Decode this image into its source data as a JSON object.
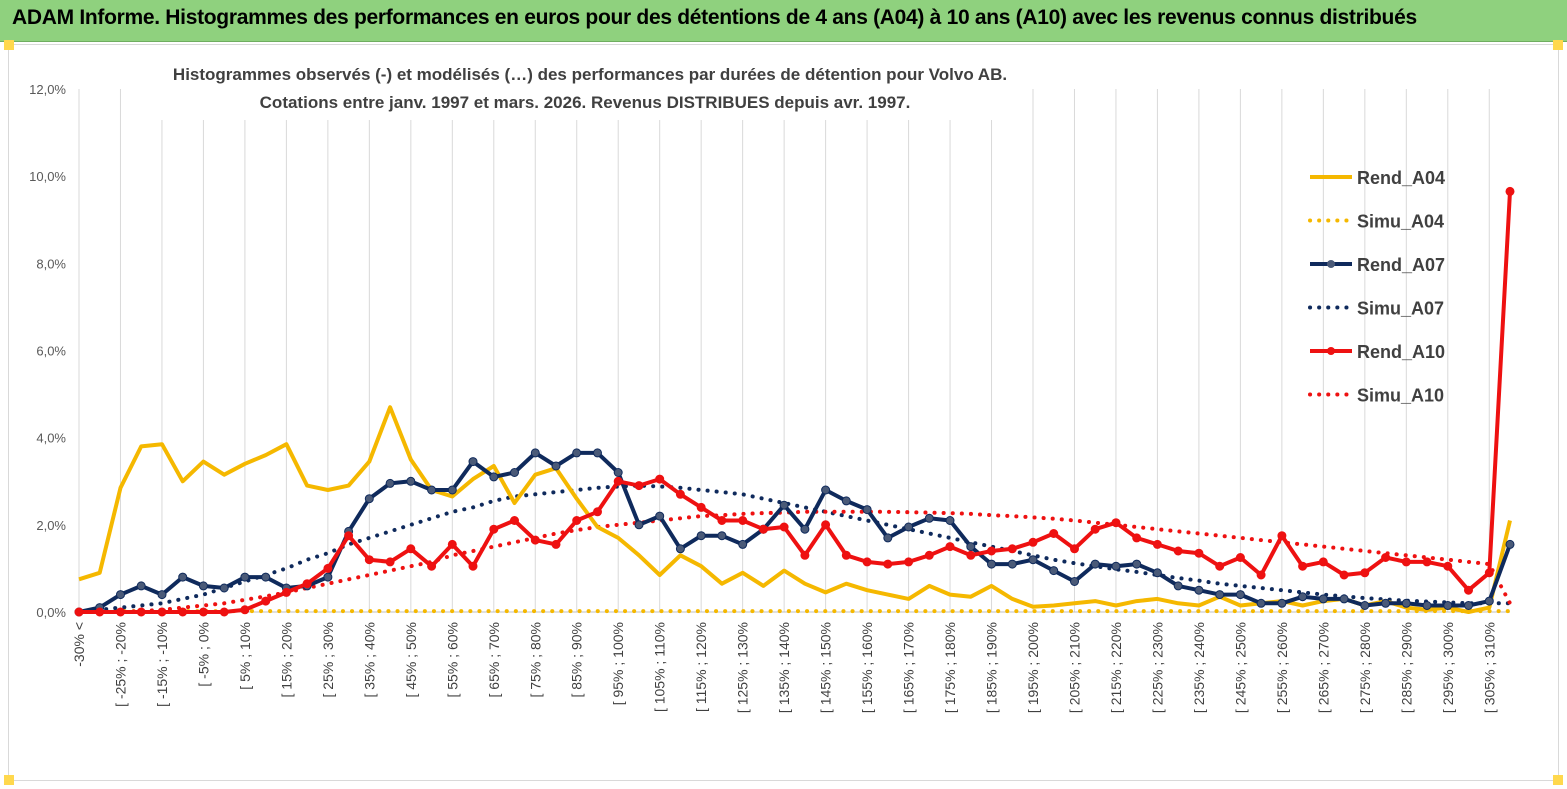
{
  "header": {
    "title": "ADAM Informe. Histogrammes des performances en euros pour des détentions de 4 ans (A04) à 10 ans (A10) avec les revenus connus distribués"
  },
  "chart_data": {
    "type": "line",
    "title_line1": "Histogrammes observés (-) et modélisés (…) des performances par durées de détention pour Volvo AB.",
    "title_line2": "Cotations entre janv. 1997 et mars. 2026.  Revenus DISTRIBUES depuis avr. 1997.",
    "ylim": [
      0,
      12
    ],
    "y_ticks": [
      0,
      2,
      4,
      6,
      8,
      10,
      12
    ],
    "y_tick_labels": [
      "0,0%",
      "2,0%",
      "4,0%",
      "6,0%",
      "8,0%",
      "10,0%",
      "12,0%"
    ],
    "grid": "vertical",
    "legend_position": "right",
    "x_tick_labels": [
      "-30% <",
      "[ -25% ; -20%",
      "[ -15% ; -10%",
      "[ -5% ; 0%",
      "[ 5% ; 10%",
      "[ 15% ; 20%",
      "[ 25% ; 30%",
      "[ 35% ; 40%",
      "[ 45% ; 50%",
      "[ 55% ; 60%",
      "[ 65% ; 70%",
      "[ 75% ; 80%",
      "[ 85% ; 90%",
      "[ 95% ; 100%",
      "[ 105% ; 110%",
      "[ 115% ; 120%",
      "[ 125% ; 130%",
      "[ 135% ; 140%",
      "[ 145% ; 150%",
      "[ 155% ; 160%",
      "[ 165% ; 170%",
      "[ 175% ; 180%",
      "[ 185% ; 190%",
      "[ 195% ; 200%",
      "[ 205% ; 210%",
      "[ 215% ; 220%",
      "[ 225% ; 230%",
      "[ 235% ; 240%",
      "[ 245% ; 250%",
      "[ 255% ; 260%",
      "[ 265% ; 270%",
      "[ 275% ; 280%",
      "[ 285% ; 290%",
      "[ 295% ; 300%",
      "[ 305% ; 310%"
    ],
    "point_count": 70,
    "series": [
      {
        "name": "Rend_A04",
        "style": "solid",
        "color": "#f5b800",
        "markers": false,
        "values": [
          0.75,
          0.9,
          2.85,
          3.8,
          3.85,
          3.0,
          3.45,
          3.15,
          3.4,
          3.6,
          3.85,
          2.9,
          2.8,
          2.9,
          3.45,
          4.7,
          3.5,
          2.8,
          2.65,
          3.05,
          3.35,
          2.5,
          3.15,
          3.3,
          2.6,
          1.95,
          1.7,
          1.3,
          0.85,
          1.3,
          1.05,
          0.65,
          0.9,
          0.6,
          0.95,
          0.65,
          0.45,
          0.65,
          0.5,
          0.4,
          0.3,
          0.6,
          0.4,
          0.35,
          0.6,
          0.3,
          0.12,
          0.15,
          0.2,
          0.25,
          0.15,
          0.25,
          0.3,
          0.2,
          0.15,
          0.35,
          0.15,
          0.2,
          0.25,
          0.15,
          0.25,
          0.3,
          0.15,
          0.25,
          0.1,
          0.05,
          0.1,
          0.0,
          0.1,
          2.1
        ]
      },
      {
        "name": "Simu_A04",
        "style": "dotted",
        "color": "#f5b800",
        "markers": false,
        "values": [
          0.02,
          0.02,
          0.02,
          0.02,
          0.02,
          0.02,
          0.02,
          0.02,
          0.02,
          0.02,
          0.02,
          0.02,
          0.02,
          0.02,
          0.02,
          0.02,
          0.02,
          0.02,
          0.02,
          0.02,
          0.02,
          0.02,
          0.02,
          0.02,
          0.02,
          0.02,
          0.02,
          0.02,
          0.02,
          0.02,
          0.02,
          0.02,
          0.02,
          0.02,
          0.02,
          0.02,
          0.02,
          0.02,
          0.02,
          0.02,
          0.02,
          0.02,
          0.02,
          0.02,
          0.02,
          0.02,
          0.02,
          0.02,
          0.02,
          0.02,
          0.02,
          0.02,
          0.02,
          0.02,
          0.02,
          0.02,
          0.02,
          0.02,
          0.02,
          0.02,
          0.02,
          0.02,
          0.02,
          0.02,
          0.02,
          0.02,
          0.02,
          0.02,
          0.02,
          0.02
        ]
      },
      {
        "name": "Rend_A07",
        "style": "solid",
        "color": "#0f2a5c",
        "markers": true,
        "values": [
          0.0,
          0.1,
          0.4,
          0.6,
          0.4,
          0.8,
          0.6,
          0.55,
          0.8,
          0.8,
          0.55,
          0.6,
          0.8,
          1.85,
          2.6,
          2.95,
          3.0,
          2.8,
          2.8,
          3.45,
          3.1,
          3.2,
          3.65,
          3.35,
          3.65,
          3.65,
          3.2,
          2.0,
          2.2,
          1.45,
          1.75,
          1.75,
          1.55,
          1.9,
          2.45,
          1.9,
          2.8,
          2.55,
          2.35,
          1.7,
          1.95,
          2.15,
          2.1,
          1.5,
          1.1,
          1.1,
          1.2,
          0.95,
          0.7,
          1.1,
          1.05,
          1.1,
          0.9,
          0.6,
          0.5,
          0.4,
          0.4,
          0.2,
          0.2,
          0.35,
          0.3,
          0.3,
          0.15,
          0.2,
          0.2,
          0.15,
          0.15,
          0.15,
          0.25,
          1.55
        ]
      },
      {
        "name": "Simu_A07",
        "style": "dotted",
        "color": "#0f2a5c",
        "markers": false,
        "values": [
          0.0,
          0.05,
          0.1,
          0.15,
          0.2,
          0.3,
          0.4,
          0.55,
          0.7,
          0.85,
          1.0,
          1.2,
          1.35,
          1.55,
          1.7,
          1.85,
          2.0,
          2.15,
          2.3,
          2.4,
          2.55,
          2.65,
          2.7,
          2.75,
          2.8,
          2.85,
          2.88,
          2.9,
          2.88,
          2.85,
          2.8,
          2.75,
          2.7,
          2.6,
          2.5,
          2.4,
          2.3,
          2.2,
          2.1,
          2.0,
          1.9,
          1.8,
          1.7,
          1.6,
          1.5,
          1.4,
          1.3,
          1.2,
          1.12,
          1.05,
          0.98,
          0.92,
          0.85,
          0.78,
          0.72,
          0.65,
          0.6,
          0.55,
          0.5,
          0.45,
          0.4,
          0.36,
          0.32,
          0.29,
          0.26,
          0.24,
          0.22,
          0.2,
          0.2,
          0.2
        ]
      },
      {
        "name": "Rend_A10",
        "style": "solid",
        "color": "#ee1111",
        "markers": true,
        "values": [
          0.0,
          0.0,
          0.0,
          0.0,
          0.0,
          0.0,
          0.0,
          0.0,
          0.05,
          0.25,
          0.45,
          0.65,
          1.0,
          1.75,
          1.2,
          1.15,
          1.45,
          1.05,
          1.55,
          1.05,
          1.9,
          2.1,
          1.65,
          1.55,
          2.1,
          2.3,
          3.0,
          2.9,
          3.05,
          2.7,
          2.4,
          2.1,
          2.1,
          1.9,
          1.95,
          1.3,
          2.0,
          1.3,
          1.15,
          1.1,
          1.15,
          1.3,
          1.5,
          1.3,
          1.4,
          1.45,
          1.6,
          1.8,
          1.45,
          1.9,
          2.05,
          1.7,
          1.55,
          1.4,
          1.35,
          1.05,
          1.25,
          0.85,
          1.75,
          1.05,
          1.15,
          0.85,
          0.9,
          1.25,
          1.15,
          1.15,
          1.05,
          0.5,
          0.9,
          9.65
        ]
      },
      {
        "name": "Simu_A10",
        "style": "dotted",
        "color": "#ee1111",
        "markers": false,
        "values": [
          0.0,
          0.0,
          0.0,
          0.02,
          0.05,
          0.1,
          0.15,
          0.2,
          0.28,
          0.36,
          0.45,
          0.55,
          0.65,
          0.75,
          0.85,
          0.95,
          1.05,
          1.15,
          1.3,
          1.4,
          1.5,
          1.6,
          1.7,
          1.8,
          1.88,
          1.95,
          2.0,
          2.05,
          2.1,
          2.15,
          2.2,
          2.22,
          2.25,
          2.27,
          2.28,
          2.3,
          2.3,
          2.3,
          2.3,
          2.3,
          2.29,
          2.28,
          2.27,
          2.25,
          2.22,
          2.2,
          2.17,
          2.14,
          2.1,
          2.05,
          2.0,
          1.95,
          1.9,
          1.85,
          1.8,
          1.75,
          1.7,
          1.65,
          1.6,
          1.55,
          1.5,
          1.45,
          1.4,
          1.35,
          1.3,
          1.25,
          1.2,
          1.15,
          1.1,
          0.2
        ]
      }
    ]
  }
}
